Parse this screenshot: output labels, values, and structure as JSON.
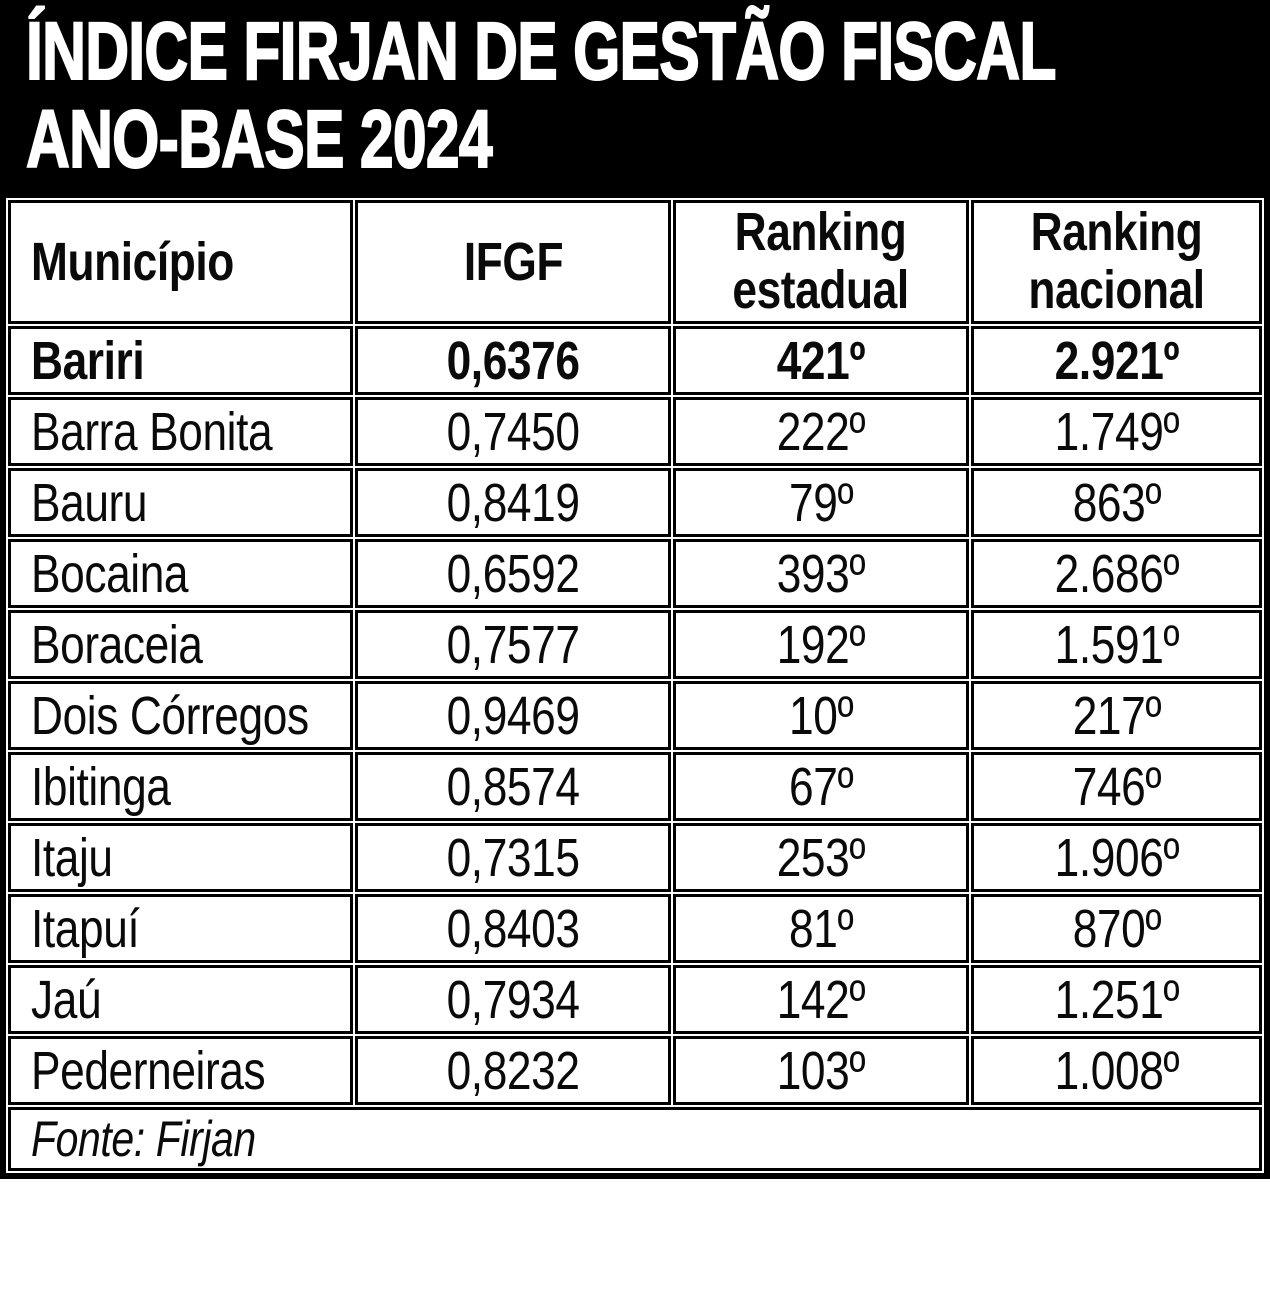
{
  "title": {
    "line1": "ÍNDICE FIRJAN DE GESTÃO FISCAL",
    "line2": "ANO-BASE 2024"
  },
  "table": {
    "header": {
      "municipality": "Município",
      "ifgf": "IFGF",
      "state_ranking_line1": "Ranking",
      "state_ranking_line2": "estadual",
      "national_ranking_line1": "Ranking",
      "national_ranking_line2": "nacional"
    },
    "rows": [
      {
        "municipality": "Bariri",
        "ifgf": "0,6376",
        "state_ranking": "421º",
        "national_ranking": "2.921º",
        "highlight": true
      },
      {
        "municipality": "Barra Bonita",
        "ifgf": "0,7450",
        "state_ranking": "222º",
        "national_ranking": "1.749º",
        "highlight": false
      },
      {
        "municipality": "Bauru",
        "ifgf": "0,8419",
        "state_ranking": "79º",
        "national_ranking": "863º",
        "highlight": false
      },
      {
        "municipality": "Bocaina",
        "ifgf": "0,6592",
        "state_ranking": "393º",
        "national_ranking": "2.686º",
        "highlight": false
      },
      {
        "municipality": "Boraceia",
        "ifgf": "0,7577",
        "state_ranking": "192º",
        "national_ranking": "1.591º",
        "highlight": false
      },
      {
        "municipality": "Dois Córregos",
        "ifgf": "0,9469",
        "state_ranking": "10º",
        "national_ranking": "217º",
        "highlight": false
      },
      {
        "municipality": "Ibitinga",
        "ifgf": "0,8574",
        "state_ranking": "67º",
        "national_ranking": "746º",
        "highlight": false
      },
      {
        "municipality": "Itaju",
        "ifgf": "0,7315",
        "state_ranking": "253º",
        "national_ranking": "1.906º",
        "highlight": false
      },
      {
        "municipality": "Itapuí",
        "ifgf": "0,8403",
        "state_ranking": "81º",
        "national_ranking": "870º",
        "highlight": false
      },
      {
        "municipality": "Jaú",
        "ifgf": "0,7934",
        "state_ranking": "142º",
        "national_ranking": "1.251º",
        "highlight": false
      },
      {
        "municipality": "Pederneiras",
        "ifgf": "0,8232",
        "state_ranking": "103º",
        "national_ranking": "1.008º",
        "highlight": false
      }
    ],
    "source": "Fonte: Firjan"
  },
  "colors": {
    "banner_bg": "#000000",
    "banner_text": "#ffffff",
    "border": "#000000",
    "cell_bg": "#ffffff",
    "text": "#000000"
  },
  "chart_data": {
    "type": "table",
    "title": "ÍNDICE FIRJAN DE GESTÃO FISCAL ANO-BASE 2024",
    "columns": [
      "Município",
      "IFGF",
      "Ranking estadual",
      "Ranking nacional"
    ],
    "rows": [
      [
        "Bariri",
        "0,6376",
        "421º",
        "2.921º"
      ],
      [
        "Barra Bonita",
        "0,7450",
        "222º",
        "1.749º"
      ],
      [
        "Bauru",
        "0,8419",
        "79º",
        "863º"
      ],
      [
        "Bocaina",
        "0,6592",
        "393º",
        "2.686º"
      ],
      [
        "Boraceia",
        "0,7577",
        "192º",
        "1.591º"
      ],
      [
        "Dois Córregos",
        "0,9469",
        "10º",
        "217º"
      ],
      [
        "Ibitinga",
        "0,8574",
        "67º",
        "746º"
      ],
      [
        "Itaju",
        "0,7315",
        "253º",
        "1.906º"
      ],
      [
        "Itapuí",
        "0,8403",
        "81º",
        "870º"
      ],
      [
        "Jaú",
        "0,7934",
        "142º",
        "1.251º"
      ],
      [
        "Pederneiras",
        "0,8232",
        "103º",
        "1.008º"
      ]
    ],
    "highlighted_row": "Bariri",
    "source": "Fonte: Firjan"
  }
}
